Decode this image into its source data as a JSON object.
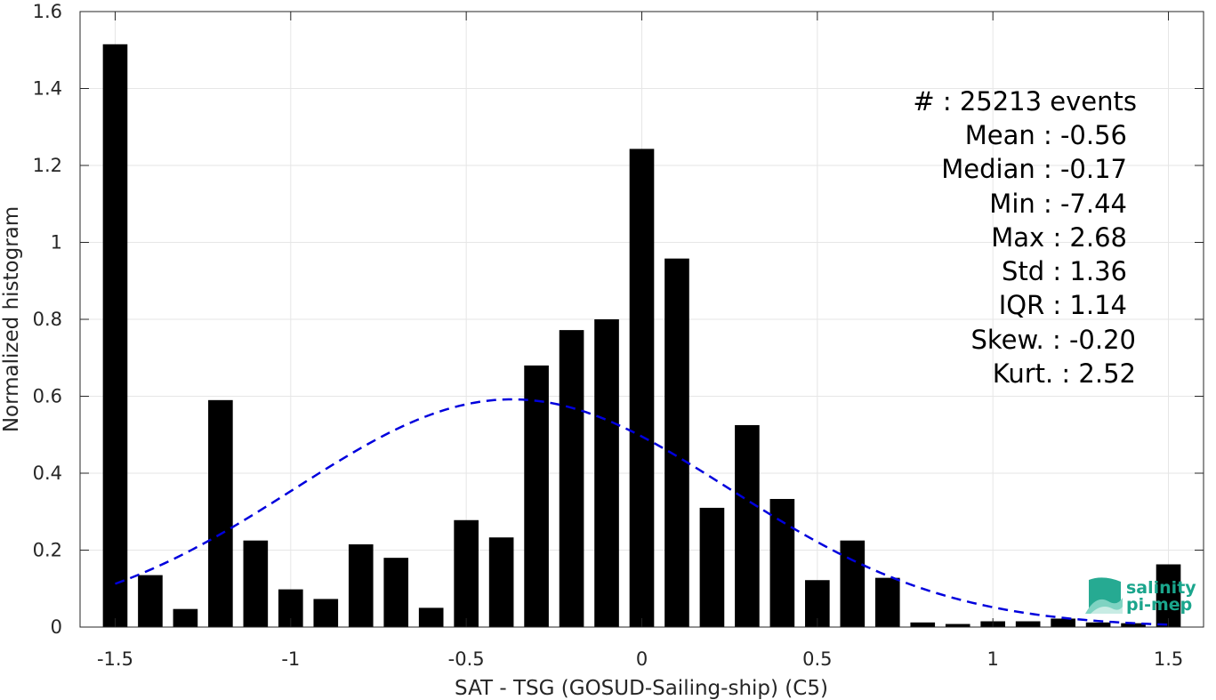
{
  "chart_data": {
    "type": "bar",
    "xlabel": "SAT - TSG (GOSUD-Sailing-ship) (C5)",
    "ylabel": "Normalized histogram",
    "xlim": [
      -1.6,
      1.6
    ],
    "ylim": [
      0,
      1.6
    ],
    "grid": true,
    "x_ticks": [
      -1.5,
      -1,
      -0.5,
      0,
      0.5,
      1,
      1.5
    ],
    "x_tick_labels": [
      "-1.5",
      "-1",
      "-0.5",
      "0",
      "0.5",
      "1",
      "1.5"
    ],
    "y_ticks": [
      0,
      0.2,
      0.4,
      0.6,
      0.8,
      1,
      1.2,
      1.4,
      1.6
    ],
    "y_tick_labels": [
      "0",
      "0.2",
      "0.4",
      "0.6",
      "0.8",
      "1",
      "1.2",
      "1.4",
      "1.6"
    ],
    "bar_color": "#000000",
    "bar_width": 0.07,
    "bars": {
      "x": [
        -1.5,
        -1.4,
        -1.3,
        -1.2,
        -1.1,
        -1.0,
        -0.9,
        -0.8,
        -0.7,
        -0.6,
        -0.5,
        -0.4,
        -0.3,
        -0.2,
        -0.1,
        0.0,
        0.1,
        0.2,
        0.3,
        0.4,
        0.5,
        0.6,
        0.7,
        0.8,
        0.9,
        1.0,
        1.1,
        1.2,
        1.3,
        1.4,
        1.5
      ],
      "values": [
        1.515,
        0.135,
        0.047,
        0.59,
        0.225,
        0.098,
        0.073,
        0.215,
        0.18,
        0.05,
        0.278,
        0.233,
        0.68,
        0.772,
        0.8,
        1.243,
        0.958,
        0.31,
        0.525,
        0.333,
        0.122,
        0.225,
        0.128,
        0.012,
        0.008,
        0.015,
        0.015,
        0.022,
        0.012,
        0.01,
        0.163
      ]
    },
    "fit_curve": {
      "style": "dashed",
      "color": "#0000dd",
      "mean": -0.37,
      "std": 0.62,
      "peak": 0.592,
      "x_range": [
        -1.5,
        1.5
      ]
    }
  },
  "stats": {
    "events": "#  : 25213 events",
    "mean": "Mean : -0.56",
    "median": "Median : -0.17",
    "min": "Min : -7.44",
    "max": "Max : 2.68",
    "std": "Std : 1.36",
    "iqr": "IQR : 1.14",
    "skew": "Skew. : -0.20",
    "kurt": "Kurt. : 2.52"
  },
  "logo": {
    "line1": "salinity",
    "line2": "pi-mep",
    "color": "#1aa58c"
  }
}
